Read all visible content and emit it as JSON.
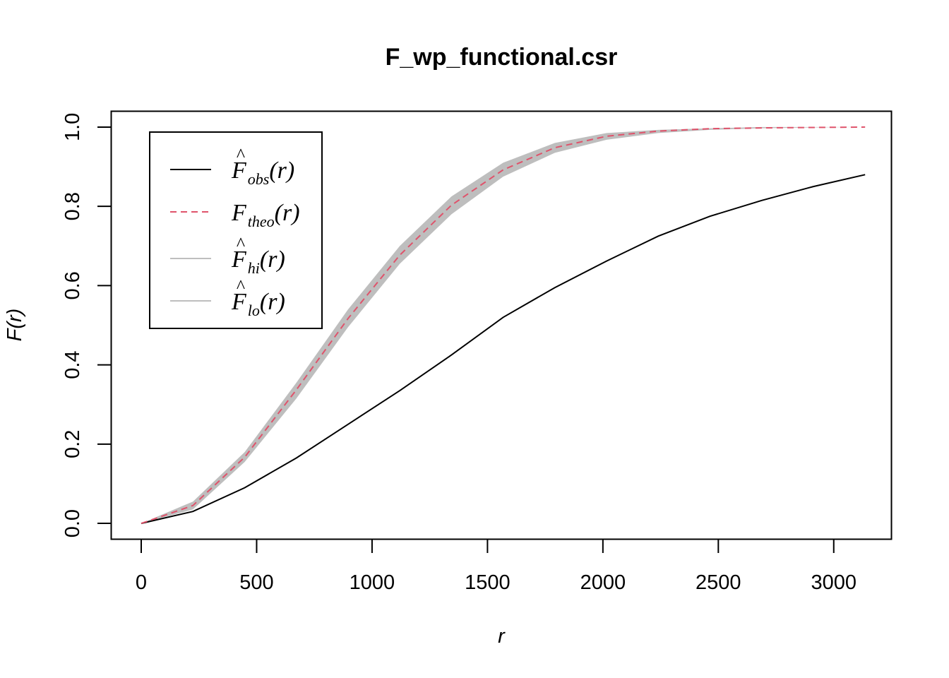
{
  "chart_data": {
    "type": "line",
    "title": "F_wp_functional.csr",
    "xlabel": "r",
    "ylabel": "F(r)",
    "xlim": [
      -130,
      3250
    ],
    "ylim": [
      -0.04,
      1.04
    ],
    "xticks": [
      0,
      500,
      1000,
      1500,
      2000,
      2500,
      3000
    ],
    "yticks": [
      0.0,
      0.2,
      0.4,
      0.6,
      0.8,
      1.0
    ],
    "xtick_labels": [
      "0",
      "500",
      "1000",
      "1500",
      "2000",
      "2500",
      "3000"
    ],
    "ytick_labels": [
      "0.0",
      "0.2",
      "0.4",
      "0.6",
      "0.8",
      "1.0"
    ],
    "grid": false,
    "legend_position": "top-left",
    "x": [
      0,
      224,
      448,
      672,
      896,
      1120,
      1344,
      1568,
      1792,
      2016,
      2240,
      2464,
      2688,
      2912,
      3136
    ],
    "band": {
      "color": "#bebebe",
      "hi": [
        0,
        0.055,
        0.18,
        0.355,
        0.54,
        0.7,
        0.825,
        0.91,
        0.96,
        0.985,
        0.993,
        0.997,
        1.0,
        1.0,
        1.0
      ],
      "lo": [
        0,
        0.035,
        0.155,
        0.315,
        0.495,
        0.655,
        0.78,
        0.875,
        0.935,
        0.968,
        0.985,
        0.993,
        0.997,
        0.999,
        1.0
      ]
    },
    "series": [
      {
        "name": "obs",
        "color": "#000000",
        "dash": "solid",
        "values": [
          0,
          0.03,
          0.09,
          0.165,
          0.25,
          0.335,
          0.425,
          0.52,
          0.595,
          0.662,
          0.725,
          0.775,
          0.815,
          0.85,
          0.88
        ]
      },
      {
        "name": "theo",
        "color": "#df536b",
        "dash": "dashed",
        "values": [
          0,
          0.045,
          0.167,
          0.337,
          0.517,
          0.677,
          0.803,
          0.892,
          0.948,
          0.977,
          0.99,
          0.996,
          0.998,
          0.999,
          1.0
        ]
      }
    ],
    "legend": [
      {
        "main": "F",
        "hat": "^",
        "sub": "obs",
        "suffix": "(r)",
        "color": "#000000",
        "dash": "solid"
      },
      {
        "main": "F",
        "hat": "",
        "sub": "theo",
        "suffix": "(r)",
        "color": "#df536b",
        "dash": "dashed"
      },
      {
        "main": "F",
        "hat": "^",
        "sub": "hi",
        "suffix": "(r)",
        "color": "#bebebe",
        "dash": "solid"
      },
      {
        "main": "F",
        "hat": "^",
        "sub": "lo",
        "suffix": "(r)",
        "color": "#bebebe",
        "dash": "solid"
      }
    ]
  }
}
